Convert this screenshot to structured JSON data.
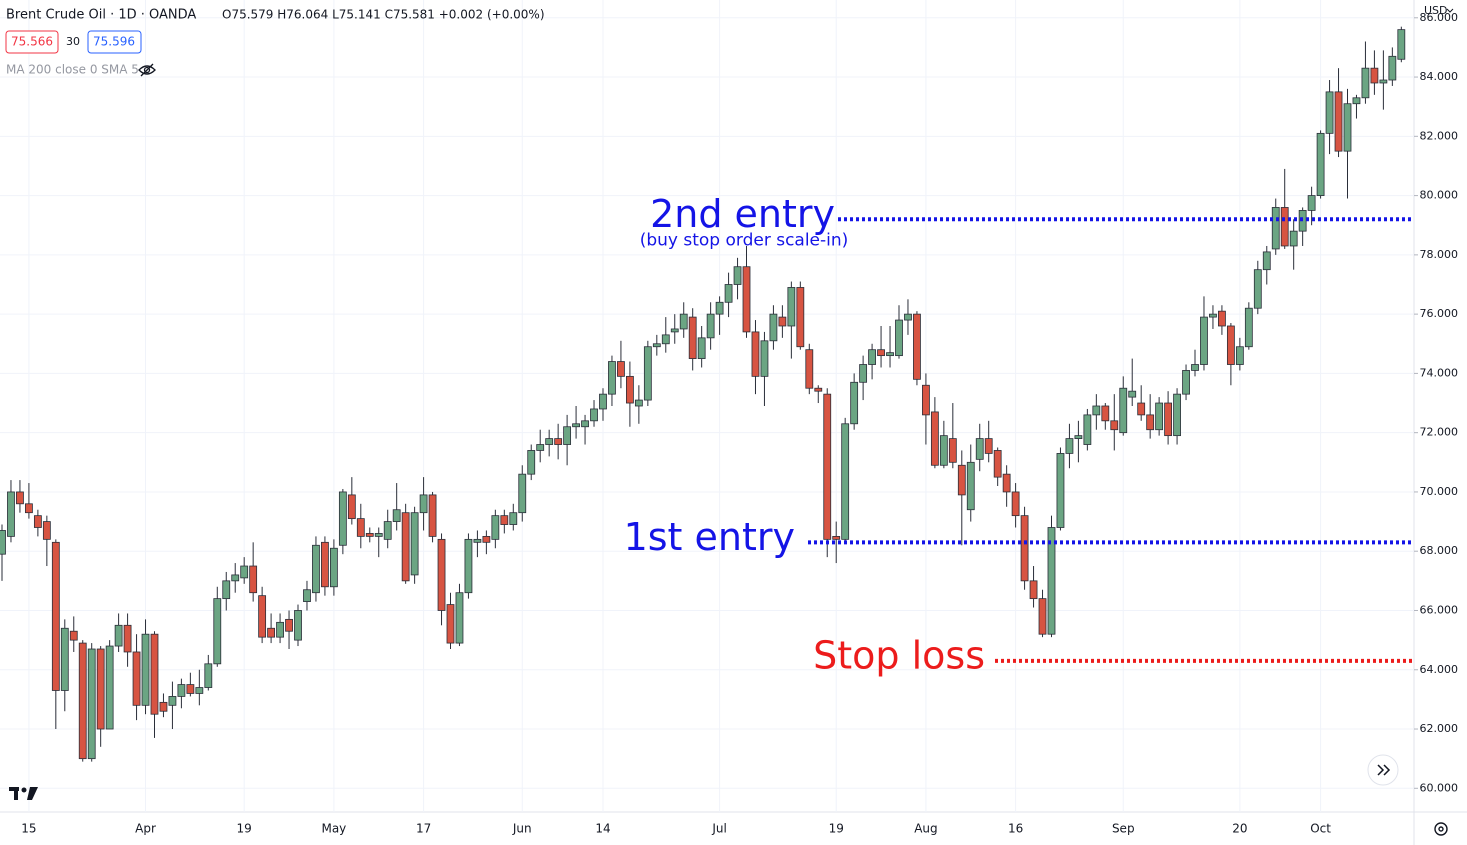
{
  "header": {
    "title": "Brent Crude Oil · 1D · OANDA",
    "ohlc": "O75.579 H76.064 L75.141 C75.581 +0.002 (+0.00%)",
    "bid": "75.566",
    "spread": "30",
    "ask": "75.596",
    "indicator": "MA 200 close 0 SMA 5",
    "currency": "USD"
  },
  "chart_data": {
    "type": "candlestick",
    "up_color": "#6ba583",
    "down_color": "#d75442",
    "ylim": [
      59.2,
      86.6
    ],
    "yticks": [
      {
        "value": 60,
        "label": "60.000"
      },
      {
        "value": 62,
        "label": "62.000"
      },
      {
        "value": 64,
        "label": "64.000"
      },
      {
        "value": 66,
        "label": "66.000"
      },
      {
        "value": 68,
        "label": "68.000"
      },
      {
        "value": 70,
        "label": "70.000"
      },
      {
        "value": 72,
        "label": "72.000"
      },
      {
        "value": 74,
        "label": "74.000"
      },
      {
        "value": 76,
        "label": "76.000"
      },
      {
        "value": 78,
        "label": "78.000"
      },
      {
        "value": 80,
        "label": "80.000"
      },
      {
        "value": 82,
        "label": "82.000"
      },
      {
        "value": 84,
        "label": "84.000"
      },
      {
        "value": 86,
        "label": "86.000"
      }
    ],
    "grid": true,
    "categories": [
      null,
      null,
      null,
      "15",
      null,
      null,
      null,
      null,
      null,
      null,
      null,
      null,
      null,
      null,
      null,
      null,
      "Apr",
      null,
      null,
      null,
      null,
      null,
      null,
      null,
      null,
      null,
      null,
      "19",
      null,
      null,
      null,
      null,
      null,
      null,
      null,
      null,
      null,
      "May",
      null,
      null,
      null,
      null,
      null,
      null,
      null,
      null,
      null,
      "17",
      null,
      null,
      null,
      null,
      null,
      null,
      null,
      null,
      null,
      null,
      "Jun",
      null,
      null,
      null,
      null,
      null,
      null,
      null,
      null,
      "14",
      null,
      null,
      null,
      null,
      null,
      null,
      null,
      null,
      null,
      null,
      null,
      null,
      "Jul",
      null,
      null,
      null,
      null,
      null,
      null,
      null,
      null,
      null,
      null,
      null,
      null,
      "19",
      null,
      null,
      null,
      null,
      null,
      null,
      null,
      null,
      null,
      "Aug",
      null,
      null,
      null,
      null,
      null,
      null,
      null,
      null,
      null,
      "16",
      null,
      null,
      null,
      null,
      null,
      null,
      null,
      null,
      null,
      null,
      null,
      "Sep",
      null,
      null,
      null,
      null,
      null,
      null,
      null,
      null,
      null,
      null,
      null,
      null,
      "20",
      null,
      null,
      null,
      null,
      null,
      null,
      null,
      null,
      "Oct",
      null,
      null,
      null,
      null,
      null,
      null,
      null,
      null,
      null
    ],
    "ohlc": [
      [
        67.9,
        68.9,
        67.0,
        68.7
      ],
      [
        68.5,
        70.4,
        68.3,
        70.0
      ],
      [
        70.0,
        70.4,
        69.3,
        69.6
      ],
      [
        69.6,
        70.3,
        69.1,
        69.3
      ],
      [
        69.2,
        69.4,
        68.5,
        68.8
      ],
      [
        69.0,
        69.2,
        67.5,
        68.4
      ],
      [
        68.3,
        68.4,
        62.0,
        63.3
      ],
      [
        63.3,
        65.7,
        62.6,
        65.4
      ],
      [
        65.3,
        65.8,
        64.6,
        65.0
      ],
      [
        64.9,
        65.0,
        60.9,
        61.0
      ],
      [
        61.0,
        64.9,
        60.9,
        64.7
      ],
      [
        64.7,
        64.8,
        61.4,
        62.0
      ],
      [
        62.0,
        65.0,
        62.0,
        64.8
      ],
      [
        64.8,
        65.9,
        64.6,
        65.5
      ],
      [
        65.5,
        65.9,
        64.1,
        64.6
      ],
      [
        64.6,
        65.2,
        62.3,
        62.8
      ],
      [
        62.8,
        65.7,
        62.5,
        65.2
      ],
      [
        65.2,
        65.3,
        61.7,
        62.5
      ],
      [
        62.9,
        63.2,
        62.4,
        62.6
      ],
      [
        62.8,
        63.6,
        62.0,
        63.1
      ],
      [
        63.1,
        63.7,
        62.7,
        63.5
      ],
      [
        63.5,
        63.9,
        63.1,
        63.2
      ],
      [
        63.2,
        64.0,
        62.8,
        63.4
      ],
      [
        63.4,
        64.5,
        63.3,
        64.2
      ],
      [
        64.2,
        66.8,
        64.1,
        66.4
      ],
      [
        66.4,
        67.3,
        66.0,
        67.0
      ],
      [
        67.0,
        67.6,
        66.6,
        67.2
      ],
      [
        67.1,
        67.8,
        66.9,
        67.5
      ],
      [
        67.5,
        68.3,
        66.3,
        66.6
      ],
      [
        66.5,
        66.8,
        64.9,
        65.1
      ],
      [
        65.4,
        65.9,
        64.9,
        65.1
      ],
      [
        65.1,
        65.9,
        64.9,
        65.6
      ],
      [
        65.7,
        66.0,
        64.7,
        65.3
      ],
      [
        65.0,
        66.2,
        64.8,
        66.0
      ],
      [
        66.3,
        67.0,
        66.0,
        66.7
      ],
      [
        66.6,
        68.5,
        66.3,
        68.2
      ],
      [
        68.3,
        68.5,
        66.5,
        66.8
      ],
      [
        66.8,
        68.4,
        66.5,
        68.1
      ],
      [
        68.2,
        70.1,
        67.9,
        70.0
      ],
      [
        69.9,
        70.5,
        68.9,
        69.1
      ],
      [
        69.1,
        69.6,
        68.1,
        68.5
      ],
      [
        68.6,
        68.8,
        68.3,
        68.5
      ],
      [
        68.5,
        68.8,
        67.8,
        68.6
      ],
      [
        68.4,
        69.4,
        68.1,
        69.0
      ],
      [
        69.0,
        70.3,
        68.7,
        69.4
      ],
      [
        69.3,
        69.6,
        66.9,
        67.0
      ],
      [
        67.2,
        69.5,
        66.9,
        69.3
      ],
      [
        69.3,
        70.5,
        68.7,
        69.9
      ],
      [
        69.9,
        70.0,
        68.3,
        68.5
      ],
      [
        68.4,
        68.6,
        65.5,
        66.0
      ],
      [
        66.2,
        66.6,
        64.7,
        64.9
      ],
      [
        64.9,
        66.9,
        64.8,
        66.6
      ],
      [
        66.6,
        68.6,
        66.4,
        68.4
      ],
      [
        68.3,
        68.7,
        67.8,
        68.4
      ],
      [
        68.5,
        68.7,
        67.9,
        68.3
      ],
      [
        68.4,
        69.4,
        68.1,
        69.2
      ],
      [
        69.2,
        69.4,
        68.6,
        68.9
      ],
      [
        68.9,
        69.6,
        68.7,
        69.3
      ],
      [
        69.3,
        70.9,
        69.0,
        70.6
      ],
      [
        70.6,
        71.6,
        70.4,
        71.4
      ],
      [
        71.4,
        72.1,
        71.0,
        71.6
      ],
      [
        71.6,
        72.1,
        71.2,
        71.8
      ],
      [
        71.8,
        72.3,
        71.1,
        71.6
      ],
      [
        71.6,
        72.6,
        70.9,
        72.2
      ],
      [
        72.2,
        72.9,
        71.8,
        72.3
      ],
      [
        72.2,
        72.6,
        71.6,
        72.4
      ],
      [
        72.4,
        73.1,
        72.2,
        72.8
      ],
      [
        72.8,
        73.5,
        72.4,
        73.3
      ],
      [
        73.3,
        74.6,
        72.9,
        74.4
      ],
      [
        74.4,
        75.1,
        73.5,
        73.9
      ],
      [
        73.9,
        74.4,
        72.2,
        73.0
      ],
      [
        72.9,
        73.6,
        72.3,
        73.1
      ],
      [
        73.1,
        75.1,
        72.9,
        74.9
      ],
      [
        74.9,
        75.3,
        74.6,
        75.0
      ],
      [
        75.0,
        75.9,
        74.7,
        75.3
      ],
      [
        75.4,
        76.0,
        75.0,
        75.5
      ],
      [
        75.5,
        76.4,
        75.2,
        76.0
      ],
      [
        75.9,
        76.2,
        74.1,
        74.5
      ],
      [
        74.5,
        75.6,
        74.2,
        75.2
      ],
      [
        75.2,
        76.4,
        74.8,
        76.0
      ],
      [
        76.0,
        76.6,
        75.3,
        76.4
      ],
      [
        76.4,
        77.4,
        75.9,
        77.0
      ],
      [
        77.0,
        77.9,
        76.5,
        77.6
      ],
      [
        77.6,
        78.3,
        75.2,
        75.4
      ],
      [
        75.4,
        75.8,
        73.3,
        73.9
      ],
      [
        73.9,
        75.4,
        72.9,
        75.1
      ],
      [
        75.1,
        76.3,
        74.8,
        76.0
      ],
      [
        75.9,
        76.3,
        75.2,
        75.6
      ],
      [
        75.6,
        77.1,
        74.5,
        76.9
      ],
      [
        76.9,
        77.1,
        74.8,
        74.9
      ],
      [
        74.8,
        75.0,
        73.3,
        73.5
      ],
      [
        73.5,
        73.6,
        73.0,
        73.4
      ],
      [
        73.3,
        73.5,
        67.8,
        68.4
      ],
      [
        68.5,
        69.0,
        67.6,
        68.4
      ],
      [
        68.4,
        72.5,
        68.3,
        72.3
      ],
      [
        72.3,
        74.0,
        72.1,
        73.7
      ],
      [
        73.7,
        74.6,
        73.1,
        74.3
      ],
      [
        74.3,
        75.0,
        73.8,
        74.8
      ],
      [
        74.8,
        75.6,
        74.2,
        74.6
      ],
      [
        74.6,
        75.6,
        74.2,
        74.7
      ],
      [
        74.6,
        76.3,
        74.5,
        75.8
      ],
      [
        75.8,
        76.5,
        75.3,
        76.0
      ],
      [
        76.0,
        76.1,
        73.6,
        73.8
      ],
      [
        73.6,
        74.0,
        71.6,
        72.6
      ],
      [
        72.7,
        73.2,
        70.8,
        70.9
      ],
      [
        70.9,
        72.4,
        70.8,
        71.9
      ],
      [
        71.8,
        73.0,
        70.8,
        71.0
      ],
      [
        70.9,
        71.4,
        68.2,
        69.9
      ],
      [
        69.4,
        71.6,
        69.0,
        71.0
      ],
      [
        71.1,
        72.3,
        70.7,
        71.8
      ],
      [
        71.8,
        72.4,
        71.0,
        71.3
      ],
      [
        71.4,
        71.5,
        70.2,
        70.5
      ],
      [
        70.6,
        70.9,
        69.5,
        70.0
      ],
      [
        70.0,
        70.3,
        68.8,
        69.2
      ],
      [
        69.2,
        69.5,
        66.7,
        67.0
      ],
      [
        67.0,
        67.5,
        66.1,
        66.4
      ],
      [
        66.4,
        66.7,
        65.1,
        65.2
      ],
      [
        65.2,
        69.2,
        65.1,
        68.8
      ],
      [
        68.8,
        71.5,
        68.7,
        71.3
      ],
      [
        71.3,
        72.3,
        70.8,
        71.8
      ],
      [
        71.8,
        72.4,
        71.0,
        71.9
      ],
      [
        71.6,
        72.8,
        71.4,
        72.6
      ],
      [
        72.6,
        73.3,
        72.1,
        72.9
      ],
      [
        72.9,
        73.0,
        72.1,
        72.4
      ],
      [
        72.4,
        73.3,
        71.4,
        72.1
      ],
      [
        72.0,
        73.9,
        71.9,
        73.5
      ],
      [
        73.2,
        74.5,
        72.9,
        73.4
      ],
      [
        73.0,
        73.6,
        72.4,
        72.6
      ],
      [
        72.6,
        73.3,
        71.8,
        72.1
      ],
      [
        72.1,
        73.2,
        71.9,
        73.0
      ],
      [
        73.0,
        73.4,
        71.6,
        71.9
      ],
      [
        71.9,
        73.5,
        71.6,
        73.3
      ],
      [
        73.3,
        74.3,
        73.1,
        74.1
      ],
      [
        74.1,
        74.8,
        73.9,
        74.3
      ],
      [
        74.3,
        76.6,
        74.1,
        75.9
      ],
      [
        75.9,
        76.3,
        75.5,
        76.0
      ],
      [
        76.1,
        76.3,
        75.3,
        75.6
      ],
      [
        75.6,
        75.7,
        73.6,
        74.3
      ],
      [
        74.3,
        75.2,
        74.1,
        74.9
      ],
      [
        74.9,
        76.4,
        74.8,
        76.2
      ],
      [
        76.2,
        77.8,
        76.0,
        77.5
      ],
      [
        77.5,
        78.3,
        77.0,
        78.1
      ],
      [
        78.2,
        79.9,
        78.0,
        79.6
      ],
      [
        79.6,
        80.9,
        78.2,
        78.3
      ],
      [
        78.3,
        79.2,
        77.5,
        78.8
      ],
      [
        78.8,
        79.6,
        78.3,
        79.5
      ],
      [
        79.5,
        80.3,
        79.0,
        80.0
      ],
      [
        80.0,
        82.2,
        79.9,
        82.1
      ],
      [
        82.1,
        83.9,
        81.4,
        83.5
      ],
      [
        83.5,
        84.3,
        81.3,
        81.5
      ],
      [
        81.5,
        83.6,
        79.9,
        83.1
      ],
      [
        83.1,
        83.4,
        82.6,
        83.3
      ],
      [
        83.3,
        85.2,
        83.1,
        84.3
      ],
      [
        84.3,
        84.9,
        83.4,
        83.8
      ],
      [
        83.8,
        84.9,
        82.9,
        83.9
      ],
      [
        83.9,
        85.0,
        83.7,
        84.7
      ],
      [
        84.6,
        85.7,
        84.5,
        85.6
      ]
    ],
    "levels": [
      {
        "text": "2nd entry",
        "subtext": "(buy stop order scale-in)",
        "value": 79.2,
        "color": "#1414e6"
      },
      {
        "text": "1st entry",
        "value": 68.3,
        "color": "#1414e6"
      },
      {
        "text": "Stop loss",
        "value": 64.3,
        "color": "#ec1c1c"
      }
    ]
  }
}
